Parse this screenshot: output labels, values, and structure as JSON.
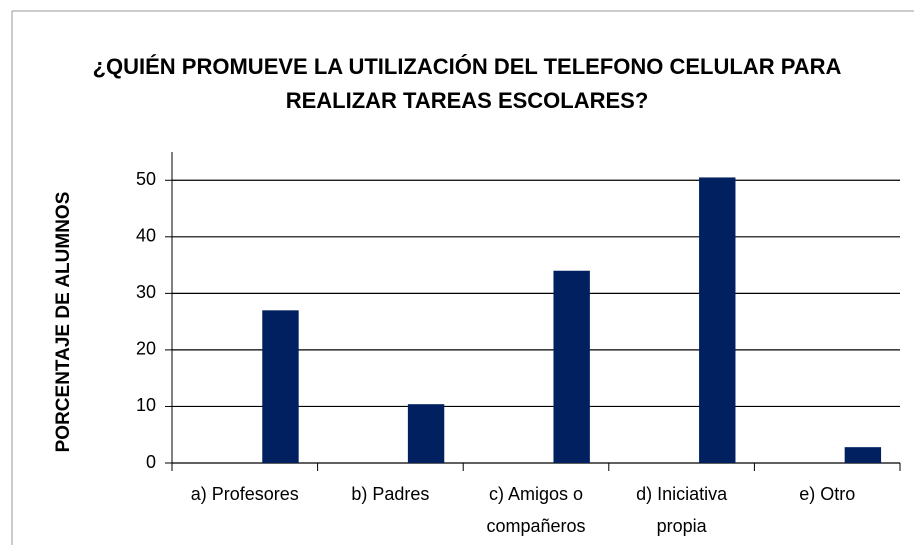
{
  "chart_data": {
    "type": "bar",
    "title": [
      "¿QUIÉN PROMUEVE LA UTILIZACIÓN DEL TELEFONO CELULAR PARA",
      "REALIZAR TAREAS ESCOLARES?"
    ],
    "y_label": "PORCENTAJE DE ALUMNOS",
    "categories": [
      [
        "a) Profesores"
      ],
      [
        "b) Padres"
      ],
      [
        "c) Amigos o",
        "compañeros"
      ],
      [
        "d) Iniciativa",
        "propia"
      ],
      [
        "e) Otro"
      ]
    ],
    "values": [
      27,
      10.4,
      34,
      50.5,
      2.8
    ],
    "color": "#002060",
    "ylim": [
      0,
      55
    ],
    "yticks": [
      0,
      10,
      20,
      30,
      40,
      50
    ],
    "grid": true
  }
}
